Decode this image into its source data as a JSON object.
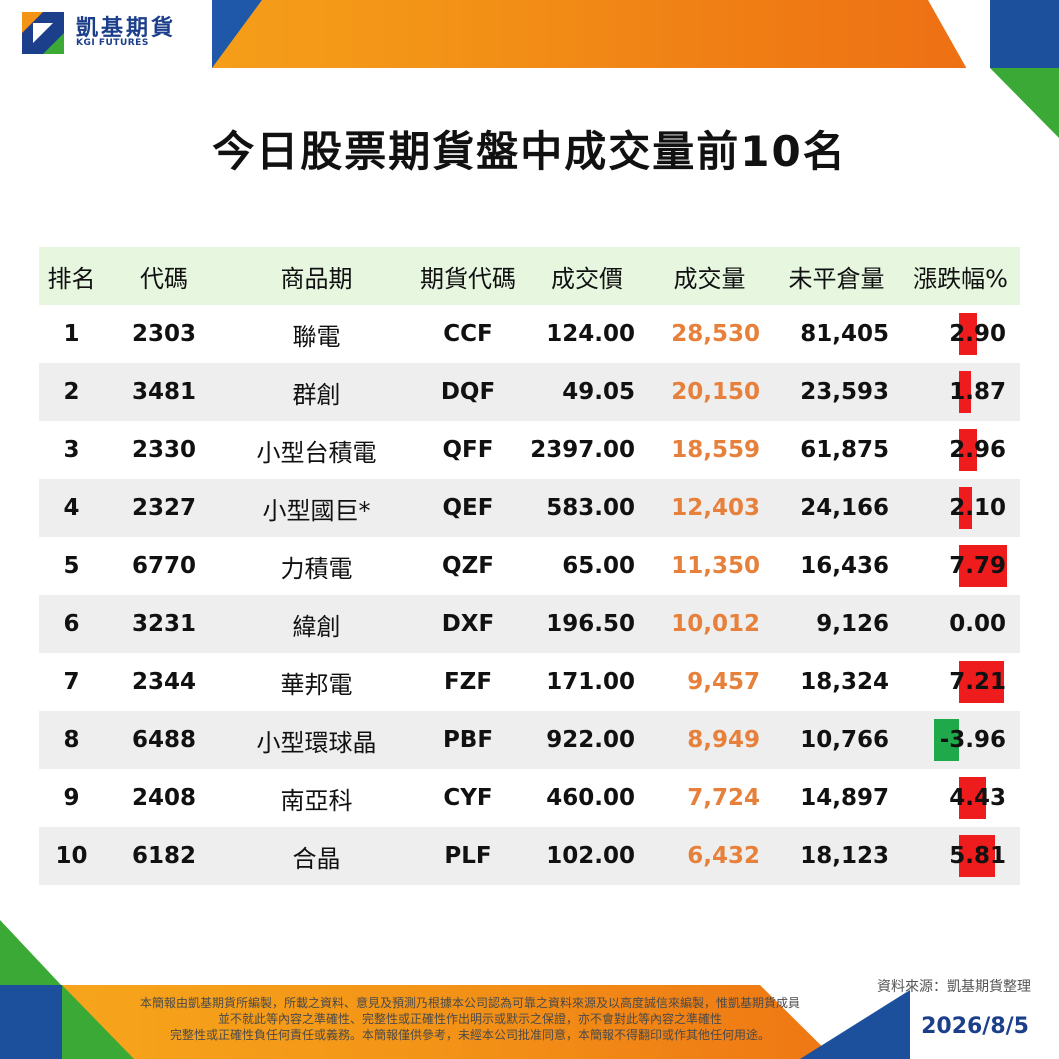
{
  "brand": {
    "name_zh": "凱基期貨",
    "name_en": "KGI FUTURES",
    "colors": {
      "navy": "#1c3f8c",
      "blue": "#1c4f9c",
      "orange": "#ef7a14",
      "green": "#3aa935"
    }
  },
  "title": "今日股票期貨盤中成交量前10名",
  "table": {
    "headers": [
      "排名",
      "代碼",
      "商品期",
      "期貨代碼",
      "成交價",
      "成交量",
      "未平倉量",
      "漲跌幅%"
    ],
    "rows": [
      {
        "rank": "1",
        "code": "2303",
        "product": "聯電",
        "futures_code": "CCF",
        "price": "124.00",
        "volume": "28,530",
        "open_interest": "81,405",
        "change": "2.90",
        "change_value": 2.9
      },
      {
        "rank": "2",
        "code": "3481",
        "product": "群創",
        "futures_code": "DQF",
        "price": "49.05",
        "volume": "20,150",
        "open_interest": "23,593",
        "change": "1.87",
        "change_value": 1.87
      },
      {
        "rank": "3",
        "code": "2330",
        "product": "小型台積電",
        "futures_code": "QFF",
        "price": "2397.00",
        "volume": "18,559",
        "open_interest": "61,875",
        "change": "2.96",
        "change_value": 2.96
      },
      {
        "rank": "4",
        "code": "2327",
        "product": "小型國巨*",
        "futures_code": "QEF",
        "price": "583.00",
        "volume": "12,403",
        "open_interest": "24,166",
        "change": "2.10",
        "change_value": 2.1
      },
      {
        "rank": "5",
        "code": "6770",
        "product": "力積電",
        "futures_code": "QZF",
        "price": "65.00",
        "volume": "11,350",
        "open_interest": "16,436",
        "change": "7.79",
        "change_value": 7.79
      },
      {
        "rank": "6",
        "code": "3231",
        "product": "緯創",
        "futures_code": "DXF",
        "price": "196.50",
        "volume": "10,012",
        "open_interest": "9,126",
        "change": "0.00",
        "change_value": 0.0
      },
      {
        "rank": "7",
        "code": "2344",
        "product": "華邦電",
        "futures_code": "FZF",
        "price": "171.00",
        "volume": "9,457",
        "open_interest": "18,324",
        "change": "7.21",
        "change_value": 7.21
      },
      {
        "rank": "8",
        "code": "6488",
        "product": "小型環球晶",
        "futures_code": "PBF",
        "price": "922.00",
        "volume": "8,949",
        "open_interest": "10,766",
        "change": "-3.96",
        "change_value": -3.96
      },
      {
        "rank": "9",
        "code": "2408",
        "product": "南亞科",
        "futures_code": "CYF",
        "price": "460.00",
        "volume": "7,724",
        "open_interest": "14,897",
        "change": "4.43",
        "change_value": 4.43
      },
      {
        "rank": "10",
        "code": "6182",
        "product": "合晶",
        "futures_code": "PLF",
        "price": "102.00",
        "volume": "6,432",
        "open_interest": "18,123",
        "change": "5.81",
        "change_value": 5.81
      }
    ],
    "bar_colors": {
      "up": "#ee1c1c",
      "down": "#1fa94a"
    },
    "volume_color": "#e6803a"
  },
  "footer": {
    "source": "資料來源：凱基期貨整理",
    "disclaimer": [
      "本簡報由凱基期貨所編製，所載之資料、意見及預測乃根據本公司認為可靠之資料來源及以高度誠信來編製，惟凱基期貨成員",
      "並不就此等內容之準確性、完整性或正確性作出明示或默示之保證，亦不會對此等內容之準確性",
      "完整性或正確性負任何責任或義務。本簡報僅供參考，未經本公司批准同意，本簡報不得翻印或作其他任何用途。"
    ],
    "date": "2026/8/5"
  }
}
